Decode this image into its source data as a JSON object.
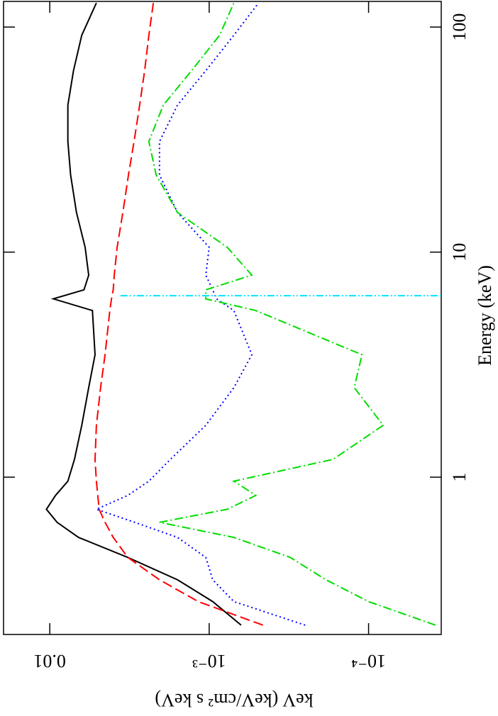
{
  "chart_data": {
    "type": "line",
    "x_label": "Energy (keV)",
    "y_label": "keV (keV/cm² s keV)",
    "x_log": true,
    "y_log": true,
    "xlim": [
      0.2,
      130
    ],
    "ylim": [
      3.5e-05,
      0.0195
    ],
    "xticks": [
      1,
      10,
      100
    ],
    "yticks": [
      0.01,
      {
        "value": 0.001,
        "label": "10⁻³"
      },
      {
        "value": 0.0001,
        "label": "10⁻⁴"
      }
    ],
    "series": [
      {
        "color": "#000000",
        "dash": "solid",
        "x": [
          0.22,
          0.28,
          0.35,
          0.44,
          0.54,
          0.63,
          0.72,
          0.83,
          0.96,
          1.2,
          1.7,
          2.5,
          3.5,
          5.5,
          6.2,
          6.8,
          7.9,
          10.5,
          15,
          22,
          31,
          45,
          64,
          92,
          128
        ],
        "values": [
          0.00063,
          0.00095,
          0.00158,
          0.00324,
          0.0066,
          0.009,
          0.0105,
          0.0092,
          0.0077,
          0.007,
          0.0063,
          0.0057,
          0.0052,
          0.0054,
          0.0095,
          0.0061,
          0.0057,
          0.006,
          0.0068,
          0.0074,
          0.0077,
          0.0077,
          0.0071,
          0.0063,
          0.0051
        ]
      },
      {
        "color": "#ff0000",
        "dash": "dashed",
        "x": [
          0.22,
          0.28,
          0.35,
          0.44,
          0.54,
          0.63,
          0.72,
          0.83,
          0.96,
          1.2,
          1.7,
          2.5,
          3.5,
          5.5,
          6.2,
          6.8,
          7.9,
          10.5,
          15,
          22,
          31,
          45,
          64,
          92,
          128
        ],
        "values": [
          0.00046,
          0.00117,
          0.00205,
          0.00324,
          0.004,
          0.0045,
          0.0049,
          0.005,
          0.0051,
          0.0052,
          0.0051,
          0.0048,
          0.0045,
          0.0042,
          0.0041,
          0.004,
          0.00394,
          0.00378,
          0.00348,
          0.00321,
          0.00296,
          0.00273,
          0.00254,
          0.00239,
          0.00224
        ]
      },
      {
        "color": "#0000ff",
        "dash": "dotted",
        "x": [
          0.22,
          0.28,
          0.35,
          0.44,
          0.54,
          0.63,
          0.72,
          0.83,
          0.96,
          1.2,
          1.7,
          2.5,
          3.5,
          5.5,
          6.2,
          6.8,
          7.9,
          10.5,
          15,
          22,
          31,
          45,
          64,
          92,
          128
        ],
        "values": [
          0.00025,
          0.0007,
          0.00095,
          0.00105,
          0.00158,
          0.00293,
          0.0051,
          0.00324,
          0.00239,
          0.00175,
          0.00105,
          0.0007,
          0.00054,
          0.0007,
          0.0009,
          0.00095,
          0.00105,
          0.001,
          0.00158,
          0.00205,
          0.00205,
          0.00158,
          0.00105,
          0.0007,
          0.00049
        ]
      },
      {
        "color": "#00dd00",
        "dash": "dashdot",
        "x": [
          0.22,
          0.28,
          0.35,
          0.44,
          0.54,
          0.63,
          0.72,
          0.83,
          0.96,
          1.2,
          1.7,
          2.5,
          3.5,
          5.5,
          6.2,
          6.8,
          7.9,
          10.5,
          15,
          22,
          31,
          45,
          64,
          92,
          128
        ],
        "values": [
          3.8e-05,
          0.0001,
          0.000185,
          0.00031,
          0.0007,
          0.00205,
          0.00077,
          0.00051,
          0.0007,
          0.000167,
          8.1e-05,
          0.000123,
          0.00011,
          0.00051,
          0.00105,
          0.00105,
          0.00054,
          0.00077,
          0.00158,
          0.00215,
          0.00239,
          0.00194,
          0.00129,
          0.00086,
          0.0007
        ]
      },
      {
        "color": "#00e5ff",
        "dash": "dashdotdot",
        "x": [
          6.4,
          6.4
        ],
        "values": [
          0.0036,
          3.5e-05
        ]
      }
    ]
  }
}
